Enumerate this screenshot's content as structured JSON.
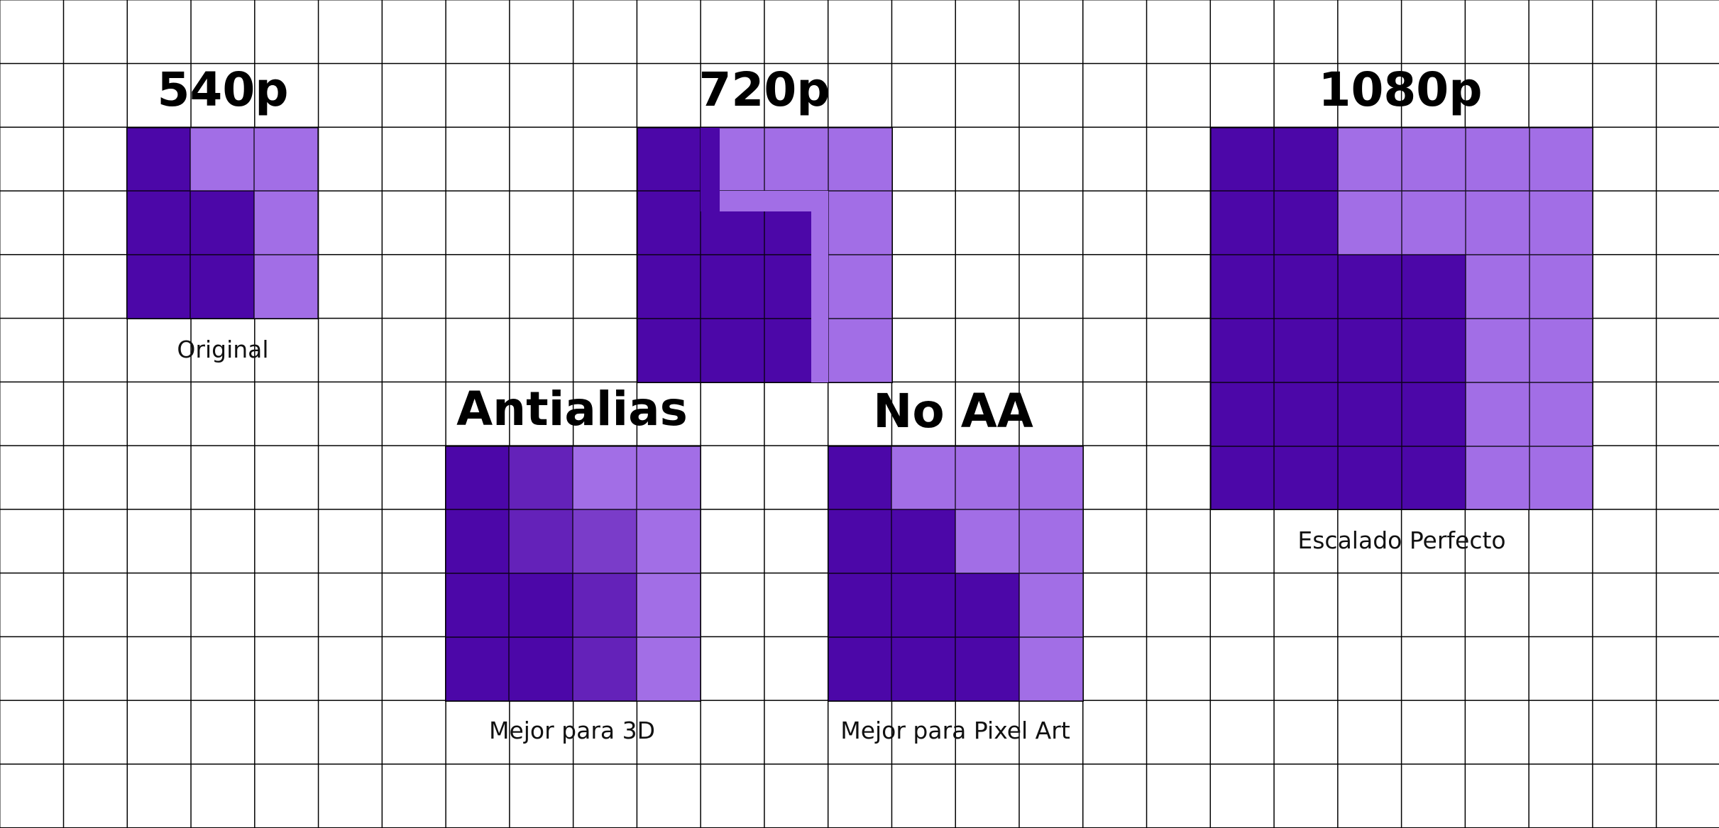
{
  "colors": {
    "d": "#4c07a8",
    "m": "#6422b9",
    "n": "#7a3cc9",
    "l": "#a26ee6"
  },
  "panels": {
    "p540": {
      "title": "540p",
      "caption": "Original",
      "pixels": [
        "dll",
        "ddl",
        "ddl"
      ]
    },
    "p720": {
      "title": "720p",
      "caption": "",
      "pixels": [
        "dlll",
        "dddl",
        "dddl",
        "dddl"
      ]
    },
    "p1080": {
      "title": "1080p",
      "caption": "Escalado Perfecto",
      "pixels": [
        "ddllll",
        "ddllll",
        "ddddll",
        "ddddll",
        "ddddll",
        "ddddll"
      ]
    },
    "antialias": {
      "title": "Antialias",
      "caption": "Mejor para 3D",
      "pixels": [
        "dmll",
        "dmnl",
        "ddml",
        "ddml"
      ]
    },
    "noaa": {
      "title": "No AA",
      "caption": "Mejor para Pixel Art",
      "pixels": [
        "dlll",
        "ddll",
        "dddl",
        "dddl"
      ]
    }
  }
}
